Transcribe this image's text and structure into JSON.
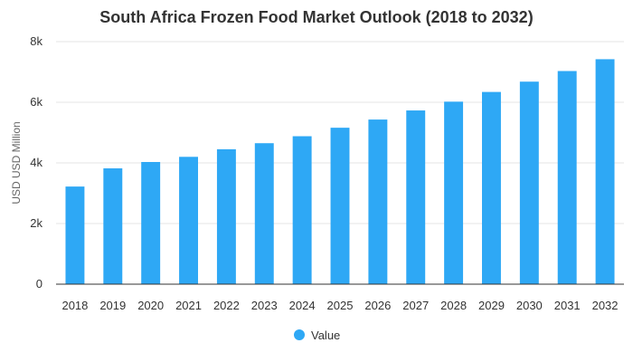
{
  "chart_data": {
    "type": "bar",
    "title": "South Africa Frozen Food Market Outlook (2018 to 2032)",
    "xlabel": "",
    "ylabel": "USD USD Million",
    "categories": [
      "2018",
      "2019",
      "2020",
      "2021",
      "2022",
      "2023",
      "2024",
      "2025",
      "2026",
      "2027",
      "2028",
      "2029",
      "2030",
      "2031",
      "2032"
    ],
    "series": [
      {
        "name": "Value",
        "color": "#2ea8f5",
        "values": [
          3220,
          3820,
          4030,
          4200,
          4450,
          4650,
          4880,
          5160,
          5430,
          5730,
          6020,
          6340,
          6680,
          7030,
          7420
        ]
      }
    ],
    "ylim": [
      0,
      8000
    ],
    "yticks": [
      0,
      2000,
      4000,
      6000,
      8000
    ],
    "ytick_labels": [
      "0",
      "2k",
      "4k",
      "6k",
      "8k"
    ],
    "grid": true,
    "legend": {
      "position": "bottom-center",
      "entries": [
        "Value"
      ]
    }
  }
}
